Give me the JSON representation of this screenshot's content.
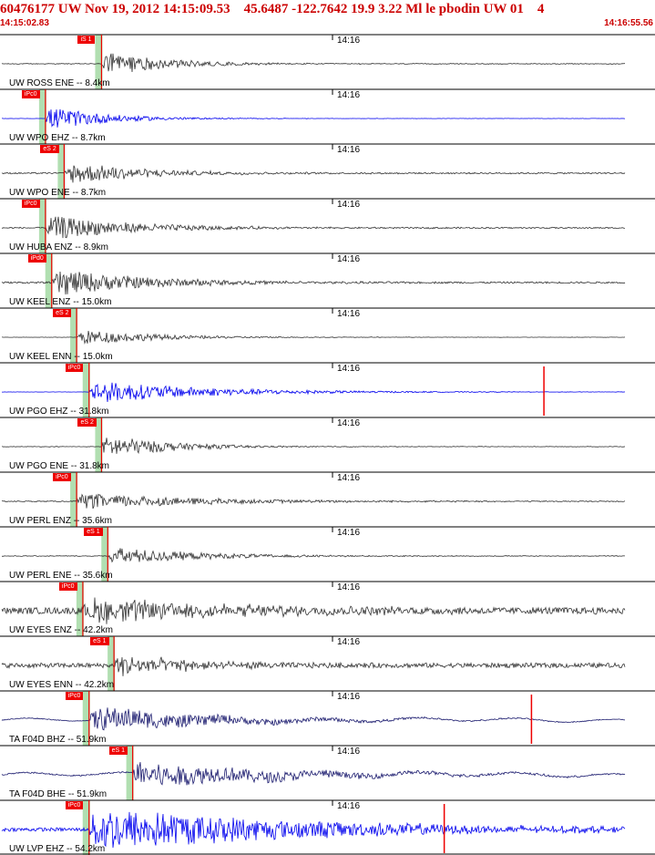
{
  "header": {
    "title": "60476177 UW Nov 19, 2012 14:15:09.53    45.6487 -122.7642 19.9 3.22 Ml le pbodin UW 01    4",
    "start_time": "14:15:02.83",
    "end_time": "14:16:55.56"
  },
  "colors": {
    "accent": "#cc0000",
    "pick": "#ee0000",
    "theoretical_band": "#a8dca8"
  },
  "traces": [
    {
      "label": "UW ROSS ENE -- 8.4km",
      "time_label": "14:16",
      "pick_label": "iS 1",
      "color": "#333333",
      "pick": 0.16,
      "decay": 0.1,
      "amp": 0.55,
      "noise": 0.03,
      "drift": false,
      "glitch": null
    },
    {
      "label": "UW WPO EHZ -- 8.7km",
      "time_label": "14:16",
      "pick_label": "iPc0",
      "color": "#0000ee",
      "pick": 0.07,
      "decay": 0.09,
      "amp": 0.55,
      "noise": 0.01,
      "drift": false,
      "glitch": null
    },
    {
      "label": "UW WPO ENE -- 8.7km",
      "time_label": "14:16",
      "pick_label": "eS 2",
      "color": "#333333",
      "pick": 0.1,
      "decay": 0.12,
      "amp": 0.5,
      "noise": 0.06,
      "drift": false,
      "glitch": null
    },
    {
      "label": "UW HUBA ENZ -- 8.9km",
      "time_label": "14:16",
      "pick_label": "iPc0",
      "color": "#333333",
      "pick": 0.07,
      "decay": 0.14,
      "amp": 0.55,
      "noise": 0.05,
      "drift": false,
      "glitch": null
    },
    {
      "label": "UW KEEL ENZ -- 15.0km",
      "time_label": "14:16",
      "pick_label": "iPd0",
      "color": "#333333",
      "pick": 0.08,
      "decay": 0.15,
      "amp": 0.6,
      "noise": 0.06,
      "drift": false,
      "glitch": null
    },
    {
      "label": "UW KEEL ENN -- 15.0km",
      "time_label": "14:16",
      "pick_label": "eS 2",
      "color": "#333333",
      "pick": 0.12,
      "decay": 0.12,
      "amp": 0.35,
      "noise": 0.02,
      "drift": false,
      "glitch": null
    },
    {
      "label": "UW PGO EHZ -- 31.8km",
      "time_label": "14:16",
      "pick_label": "iPc0",
      "color": "#0000ee",
      "pick": 0.14,
      "decay": 0.18,
      "amp": 0.5,
      "noise": 0.01,
      "drift": false,
      "glitch": 0.87
    },
    {
      "label": "UW PGO ENE -- 31.8km",
      "time_label": "14:16",
      "pick_label": "eS 2",
      "color": "#333333",
      "pick": 0.16,
      "decay": 0.1,
      "amp": 0.55,
      "noise": 0.02,
      "drift": false,
      "glitch": null
    },
    {
      "label": "UW PERL ENZ -- 35.6km",
      "time_label": "14:16",
      "pick_label": "iPc0",
      "color": "#333333",
      "pick": 0.12,
      "decay": 0.2,
      "amp": 0.35,
      "noise": 0.06,
      "drift": false,
      "glitch": null
    },
    {
      "label": "UW PERL ENE -- 35.6km",
      "time_label": "14:16",
      "pick_label": "eS 1",
      "color": "#333333",
      "pick": 0.17,
      "decay": 0.14,
      "amp": 0.4,
      "noise": 0.04,
      "drift": false,
      "glitch": null
    },
    {
      "label": "UW EYES ENZ -- 42.2km",
      "time_label": "14:16",
      "pick_label": "iPc0",
      "color": "#333333",
      "pick": 0.13,
      "decay": 0.25,
      "amp": 0.55,
      "noise": 0.25,
      "drift": false,
      "glitch": null
    },
    {
      "label": "UW EYES ENN -- 42.2km",
      "time_label": "14:16",
      "pick_label": "eS 1",
      "color": "#333333",
      "pick": 0.18,
      "decay": 0.12,
      "amp": 0.5,
      "noise": 0.2,
      "drift": false,
      "glitch": null
    },
    {
      "label": "TA F04D BHZ -- 51.9km",
      "time_label": "14:16",
      "pick_label": "iPc0",
      "color": "#1a1a6e",
      "pick": 0.14,
      "decay": 0.2,
      "amp": 0.55,
      "noise": 0.03,
      "drift": true,
      "glitch": 0.85
    },
    {
      "label": "TA F04D BHE -- 51.9km",
      "time_label": "14:16",
      "pick_label": "eS 1",
      "color": "#1a1a6e",
      "pick": 0.21,
      "decay": 0.22,
      "amp": 0.6,
      "noise": 0.05,
      "drift": true,
      "glitch": null
    },
    {
      "label": "UW LVP EHZ -- 54.2km",
      "time_label": "14:16",
      "pick_label": "iPc0",
      "color": "#0000ee",
      "pick": 0.14,
      "decay": 0.35,
      "amp": 0.95,
      "noise": 0.08,
      "drift": false,
      "glitch": 0.71
    }
  ]
}
